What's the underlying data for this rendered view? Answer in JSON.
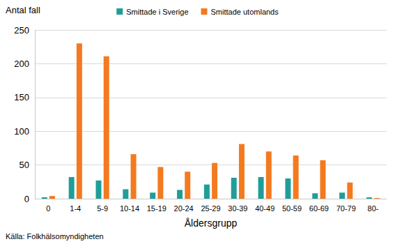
{
  "chart_data": {
    "type": "bar",
    "categories": [
      "0",
      "1-4",
      "5-9",
      "10-14",
      "15-19",
      "20-24",
      "25-29",
      "30-39",
      "40-49",
      "50-59",
      "60-69",
      "70-79",
      "80-"
    ],
    "series": [
      {
        "name": "Smittade i Sverige",
        "color": "#1f9e99",
        "values": [
          2,
          32,
          27,
          14,
          9,
          13,
          21,
          31,
          32,
          30,
          8,
          9,
          2
        ]
      },
      {
        "name": "Smittade utomlands",
        "color": "#f47a1f",
        "values": [
          4,
          230,
          211,
          66,
          47,
          40,
          53,
          81,
          70,
          64,
          57,
          24,
          1
        ]
      }
    ],
    "xlabel": "Åldersgrupp",
    "ylabel": "Antal fall",
    "annotations": [
      "Källa: Folkhälsomyndigheten"
    ],
    "ylim": [
      0,
      250
    ],
    "yticks": [
      0,
      50,
      100,
      150,
      200,
      250
    ],
    "grid": true,
    "legend": "top"
  }
}
